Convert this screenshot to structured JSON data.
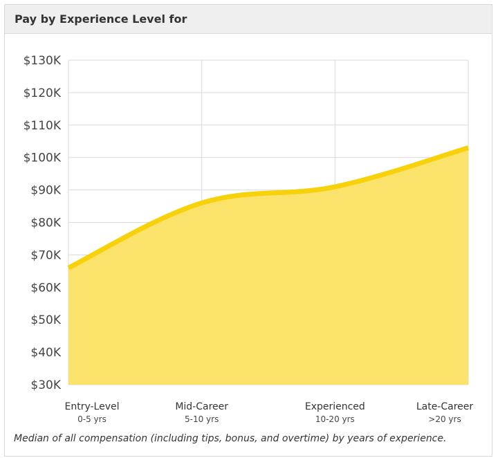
{
  "header": {
    "title": "Pay by Experience Level for"
  },
  "caption": "Median of all compensation (including tips, bonus, and overtime) by years of experience.",
  "colors": {
    "line": "#f7d10a",
    "area": "#fbe26b",
    "grid": "#d9d9d9"
  },
  "chart_data": {
    "type": "area",
    "title": "Pay by Experience Level for",
    "categories": [
      "Entry-Level",
      "Mid-Career",
      "Experienced",
      "Late-Career"
    ],
    "category_sublabels": [
      "0-5 yrs",
      "5-10 yrs",
      "10-20 yrs",
      ">20 yrs"
    ],
    "values": [
      66000,
      86000,
      91000,
      103000
    ],
    "ylim": [
      30000,
      130000
    ],
    "yticks": [
      30000,
      40000,
      50000,
      60000,
      70000,
      80000,
      90000,
      100000,
      110000,
      120000,
      130000
    ],
    "ytick_labels": [
      "$30K",
      "$40K",
      "$50K",
      "$60K",
      "$70K",
      "$80K",
      "$90K",
      "$100K",
      "$110K",
      "$120K",
      "$130K"
    ],
    "xlabel": "",
    "ylabel": "",
    "grid": true
  }
}
